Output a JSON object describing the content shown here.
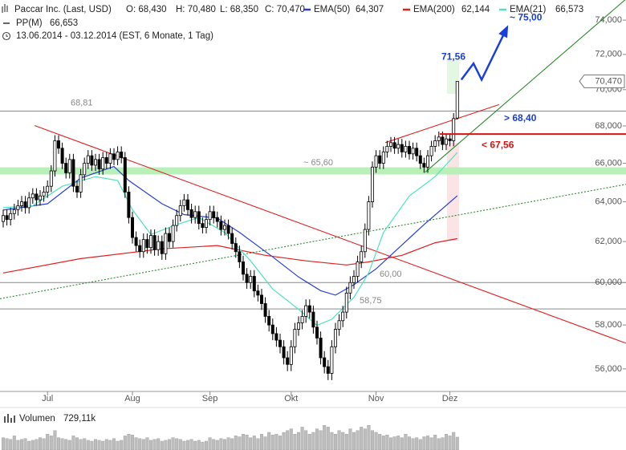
{
  "chart_data": {
    "type": "candlestick",
    "header": {
      "instrument": "Paccar Inc. (Last, USD)",
      "quote": [
        "O: 68,430",
        "H: 70,480",
        "L: 68,350",
        "C: 70,470"
      ],
      "pivot_name": "PP(M)",
      "pivot_value": "66,653",
      "range": "13.06.2014 - 03.12.2014 (EST, 6 Monate, 1 Tag)"
    },
    "log_scale": true,
    "grid": false,
    "xlim": [
      -0.87,
      168.7
    ],
    "ylim": [
      55,
      75.2
    ],
    "yticks": [
      {
        "value": 56,
        "label": "56,000"
      },
      {
        "value": 58,
        "label": "58,000"
      },
      {
        "value": 60,
        "label": "60,000"
      },
      {
        "value": 62,
        "label": "62,000"
      },
      {
        "value": 64,
        "label": "64,000"
      },
      {
        "value": 66,
        "label": "66,000"
      },
      {
        "value": 68,
        "label": "68,000"
      },
      {
        "value": 70,
        "label": "70,000"
      },
      {
        "value": 72,
        "label": "72,000"
      },
      {
        "value": 74,
        "label": "74,000"
      }
    ],
    "xticks": [
      {
        "value": 12,
        "label": "Jul"
      },
      {
        "value": 35,
        "label": "Aug"
      },
      {
        "value": 56,
        "label": "Sep"
      },
      {
        "value": 78,
        "label": "Okt"
      },
      {
        "value": 101,
        "label": "Nov"
      },
      {
        "value": 121,
        "label": "Dez"
      }
    ],
    "up_color": "#ffffff",
    "down_color": "#000000",
    "candles": [
      [
        63.0,
        63.6,
        62.7,
        63.3
      ],
      [
        63.3,
        63.6,
        62.8,
        63.1
      ],
      [
        63.1,
        63.7,
        62.8,
        63.4
      ],
      [
        63.4,
        63.9,
        63.1,
        63.6
      ],
      [
        63.6,
        64.1,
        63.3,
        63.8
      ],
      [
        63.8,
        64.3,
        63.5,
        64.0
      ],
      [
        64.0,
        64.3,
        63.4,
        63.7
      ],
      [
        63.7,
        64.5,
        63.4,
        64.2
      ],
      [
        64.2,
        64.7,
        63.9,
        64.4
      ],
      [
        64.4,
        64.7,
        63.8,
        64.1
      ],
      [
        64.1,
        64.6,
        63.8,
        64.3
      ],
      [
        64.3,
        64.8,
        64.0,
        64.5
      ],
      [
        64.5,
        65.1,
        64.2,
        64.8
      ],
      [
        64.8,
        65.9,
        64.5,
        65.6
      ],
      [
        65.6,
        67.5,
        65.3,
        67.2
      ],
      [
        67.2,
        67.5,
        66.5,
        66.8
      ],
      [
        66.8,
        67.1,
        65.7,
        66.0
      ],
      [
        66.0,
        66.3,
        65.2,
        65.5
      ],
      [
        65.5,
        66.5,
        65.2,
        66.2
      ],
      [
        66.2,
        66.5,
        64.5,
        64.8
      ],
      [
        64.8,
        65.1,
        64.2,
        64.5
      ],
      [
        64.5,
        65.7,
        64.2,
        65.4
      ],
      [
        65.4,
        66.3,
        65.1,
        66.0
      ],
      [
        66.0,
        66.7,
        65.7,
        66.4
      ],
      [
        66.4,
        66.7,
        65.6,
        65.9
      ],
      [
        65.9,
        66.5,
        65.6,
        66.2
      ],
      [
        66.2,
        66.5,
        65.4,
        65.7
      ],
      [
        65.7,
        66.6,
        65.4,
        66.3
      ],
      [
        66.3,
        66.6,
        65.7,
        66.0
      ],
      [
        66.0,
        66.8,
        65.7,
        66.5
      ],
      [
        66.5,
        66.8,
        65.9,
        66.2
      ],
      [
        66.2,
        66.9,
        65.9,
        66.6
      ],
      [
        66.6,
        66.9,
        66.0,
        66.3
      ],
      [
        66.3,
        66.6,
        64.2,
        64.5
      ],
      [
        64.5,
        64.8,
        62.9,
        63.2
      ],
      [
        63.2,
        63.5,
        61.9,
        62.2
      ],
      [
        62.2,
        62.5,
        61.5,
        61.8
      ],
      [
        61.8,
        62.1,
        61.2,
        61.5
      ],
      [
        61.5,
        62.4,
        61.2,
        62.1
      ],
      [
        62.1,
        62.4,
        61.4,
        61.7
      ],
      [
        61.7,
        62.6,
        61.4,
        62.3
      ],
      [
        62.3,
        62.6,
        61.3,
        61.6
      ],
      [
        61.6,
        62.3,
        61.3,
        62.0
      ],
      [
        62.0,
        62.3,
        61.1,
        61.4
      ],
      [
        61.4,
        62.7,
        61.1,
        62.4
      ],
      [
        62.4,
        62.7,
        61.7,
        62.0
      ],
      [
        62.0,
        63.1,
        61.7,
        62.8
      ],
      [
        62.8,
        63.6,
        62.5,
        63.3
      ],
      [
        63.3,
        64.1,
        63.0,
        63.8
      ],
      [
        63.8,
        64.4,
        63.5,
        64.1
      ],
      [
        64.1,
        64.4,
        63.3,
        63.6
      ],
      [
        63.6,
        63.9,
        62.9,
        63.2
      ],
      [
        63.2,
        63.8,
        62.9,
        63.5
      ],
      [
        63.5,
        63.8,
        62.6,
        62.9
      ],
      [
        62.9,
        63.2,
        62.4,
        62.7
      ],
      [
        62.7,
        63.4,
        62.4,
        63.1
      ],
      [
        63.1,
        63.8,
        62.8,
        63.5
      ],
      [
        63.5,
        63.8,
        62.9,
        63.2
      ],
      [
        63.2,
        63.5,
        62.7,
        63.0
      ],
      [
        63.0,
        63.3,
        62.3,
        62.6
      ],
      [
        62.6,
        63.1,
        62.3,
        62.8
      ],
      [
        62.8,
        63.1,
        62.1,
        62.4
      ],
      [
        62.4,
        62.7,
        61.6,
        61.9
      ],
      [
        61.9,
        62.2,
        61.2,
        61.5
      ],
      [
        61.5,
        61.8,
        60.7,
        61.0
      ],
      [
        61.0,
        61.3,
        60.1,
        60.4
      ],
      [
        60.4,
        60.7,
        59.7,
        60.0
      ],
      [
        60.0,
        60.6,
        59.7,
        60.3
      ],
      [
        60.3,
        60.6,
        59.3,
        59.6
      ],
      [
        59.6,
        59.9,
        59.1,
        59.4
      ],
      [
        59.4,
        59.7,
        58.7,
        59.0
      ],
      [
        59.0,
        59.3,
        58.1,
        58.4
      ],
      [
        58.4,
        58.7,
        57.7,
        58.0
      ],
      [
        58.0,
        58.3,
        57.3,
        57.6
      ],
      [
        57.6,
        57.9,
        57.0,
        57.3
      ],
      [
        57.3,
        57.6,
        56.7,
        57.0
      ],
      [
        57.0,
        57.3,
        56.2,
        56.5
      ],
      [
        56.5,
        56.8,
        55.9,
        56.2
      ],
      [
        56.2,
        57.3,
        55.9,
        57.0
      ],
      [
        57.0,
        58.1,
        56.7,
        57.8
      ],
      [
        57.8,
        58.4,
        57.5,
        58.1
      ],
      [
        58.1,
        58.7,
        57.8,
        58.4
      ],
      [
        58.4,
        59.2,
        58.1,
        58.9
      ],
      [
        58.9,
        59.2,
        58.3,
        58.6
      ],
      [
        58.6,
        58.9,
        57.6,
        57.9
      ],
      [
        57.9,
        58.2,
        57.1,
        57.4
      ],
      [
        57.4,
        57.7,
        56.2,
        56.5
      ],
      [
        56.5,
        56.8,
        55.8,
        56.1
      ],
      [
        56.1,
        56.4,
        55.5,
        55.8
      ],
      [
        55.8,
        57.3,
        55.5,
        57.0
      ],
      [
        57.0,
        58.1,
        56.7,
        57.8
      ],
      [
        57.8,
        58.5,
        57.5,
        58.2
      ],
      [
        58.2,
        58.9,
        57.9,
        58.6
      ],
      [
        58.6,
        59.8,
        58.3,
        59.5
      ],
      [
        59.5,
        60.3,
        59.2,
        60.0
      ],
      [
        60.0,
        60.6,
        59.7,
        60.3
      ],
      [
        60.3,
        61.3,
        60.0,
        61.0
      ],
      [
        61.0,
        61.8,
        60.7,
        61.5
      ],
      [
        61.5,
        62.9,
        61.2,
        62.6
      ],
      [
        62.6,
        64.3,
        62.3,
        64.0
      ],
      [
        64.0,
        66.1,
        63.7,
        65.8
      ],
      [
        65.8,
        66.7,
        65.5,
        66.4
      ],
      [
        66.4,
        66.7,
        65.7,
        66.0
      ],
      [
        66.0,
        66.9,
        65.7,
        66.6
      ],
      [
        66.6,
        67.2,
        66.3,
        66.9
      ],
      [
        66.9,
        67.4,
        66.6,
        67.1
      ],
      [
        67.1,
        67.4,
        66.5,
        66.8
      ],
      [
        66.8,
        67.3,
        66.5,
        67.0
      ],
      [
        67.0,
        67.3,
        66.3,
        66.6
      ],
      [
        66.6,
        67.2,
        66.3,
        66.9
      ],
      [
        66.9,
        67.2,
        66.2,
        66.5
      ],
      [
        66.5,
        67.1,
        66.2,
        66.8
      ],
      [
        66.8,
        67.1,
        66.1,
        66.4
      ],
      [
        66.4,
        66.7,
        65.7,
        66.0
      ],
      [
        66.0,
        66.3,
        65.5,
        65.8
      ],
      [
        65.8,
        66.7,
        65.5,
        66.4
      ],
      [
        66.4,
        67.2,
        66.1,
        66.9
      ],
      [
        66.9,
        67.5,
        66.6,
        67.2
      ],
      [
        67.2,
        67.7,
        66.9,
        67.4
      ],
      [
        67.4,
        67.7,
        66.7,
        67.0
      ],
      [
        67.0,
        67.6,
        66.7,
        67.3
      ],
      [
        67.3,
        67.6,
        66.9,
        67.2
      ],
      [
        67.2,
        68.7,
        66.9,
        68.4
      ],
      [
        68.43,
        70.48,
        68.35,
        70.47
      ]
    ],
    "last_price_label": "70,470",
    "series": [
      {
        "name": "EMA(50)",
        "color": "#2a3fd0",
        "last_label": "64,307",
        "x": [
          0,
          12,
          21,
          30,
          34,
          43,
          49,
          58,
          64,
          73,
          80,
          86,
          90,
          95,
          101,
          108,
          114,
          123
        ],
        "values": [
          63.58,
          63.9,
          65.23,
          65.83,
          65.1,
          63.9,
          63.35,
          63.17,
          62.45,
          61.24,
          60.27,
          59.61,
          59.4,
          59.9,
          60.66,
          61.83,
          62.85,
          64.307
        ]
      },
      {
        "name": "EMA(200)",
        "color": "#e02020",
        "last_label": "62,144",
        "x": [
          0,
          21,
          43,
          58,
          71,
          82,
          93,
          99,
          108,
          117,
          123
        ],
        "values": [
          60.46,
          61.16,
          61.64,
          61.8,
          61.32,
          61.05,
          60.85,
          61.0,
          61.32,
          61.94,
          62.144
        ]
      },
      {
        "name": "EMA(21)",
        "color": "#4fe3c0",
        "last_label": "66,573",
        "x": [
          0,
          8,
          16,
          25,
          31,
          35,
          40,
          47,
          53,
          60,
          67,
          73,
          80,
          85,
          89,
          95,
          99,
          103,
          110,
          117,
          123
        ],
        "values": [
          63.7,
          63.8,
          64.8,
          65.3,
          65.1,
          63.6,
          62.35,
          62.85,
          63.2,
          62.45,
          61.05,
          59.69,
          58.73,
          57.98,
          58.27,
          59.3,
          60.46,
          62.45,
          64.3,
          65.3,
          66.573
        ]
      }
    ],
    "levels": [
      {
        "value": 68.81,
        "label": "68,81"
      },
      {
        "value": 60.0,
        "label": "60,00"
      },
      {
        "value": 58.75,
        "label": "58,75"
      }
    ],
    "support_zone": {
      "value": 65.6,
      "label": "~ 65,60",
      "color": "#b8f0b8"
    },
    "trendlines": [
      {
        "color": "#e02020",
        "dashed": false,
        "x": [
          8.5,
          168.7
        ],
        "values": [
          68.02,
          57.16
        ]
      },
      {
        "color": "#e02020",
        "dashed": false,
        "x": [
          103.5,
          134.3
        ],
        "values": [
          67.1,
          69.17
        ]
      },
      {
        "color": "#2a8a2a",
        "dashed": false,
        "x": [
          114.3,
          168.7
        ],
        "values": [
          65.53,
          75.26
        ]
      },
      {
        "color": "#2a8a2a",
        "dashed": true,
        "x": [
          -0.87,
          168.7
        ],
        "values": [
          59.23,
          64.9
        ]
      }
    ],
    "projection": {
      "color": "#1a3fe0",
      "x": [
        124.1,
        127.4,
        129.6,
        136.5
      ],
      "values": [
        70.56,
        71.48,
        70.56,
        73.58
      ]
    },
    "annotations": [
      {
        "text": "71,56",
        "value": 71.56,
        "color": "#1a3fd0",
        "line": false
      },
      {
        "text": "~ 75,00",
        "value": 75.0,
        "color": "#1a3fd0",
        "line": false
      },
      {
        "text": "> 68,40",
        "value": 68.4,
        "color": "#1a3fd0",
        "line": false
      },
      {
        "text": "< 67,56",
        "value": 67.56,
        "color": "#e01010",
        "line": true
      }
    ],
    "volume": {
      "label": "Volumen",
      "last_label": "729,11k",
      "color": "#bdbdbd",
      "ylim": [
        0,
        1500
      ],
      "values": [
        700,
        650,
        600,
        800,
        550,
        600,
        650,
        500,
        550,
        600,
        700,
        650,
        900,
        800,
        1100,
        700,
        650,
        600,
        550,
        800,
        700,
        600,
        650,
        550,
        500,
        600,
        550,
        500,
        600,
        550,
        650,
        500,
        550,
        800,
        900,
        850,
        700,
        650,
        600,
        700,
        550,
        600,
        650,
        500,
        550,
        600,
        700,
        650,
        600,
        500,
        550,
        600,
        500,
        550,
        450,
        500,
        700,
        600,
        550,
        650,
        600,
        700,
        650,
        800,
        750,
        900,
        850,
        700,
        800,
        650,
        900,
        750,
        1000,
        850,
        900,
        800,
        1000,
        1100,
        1200,
        900,
        1000,
        1300,
        1100,
        900,
        1000,
        1200,
        1100,
        1400,
        1300,
        1000,
        900,
        1100,
        1000,
        900,
        1200,
        1000,
        1100,
        1300,
        1200,
        1400,
        1100,
        1000,
        900,
        800,
        850,
        700,
        750,
        800,
        700,
        900,
        750,
        650,
        700,
        600,
        750,
        800,
        700,
        850,
        650,
        700,
        900,
        800,
        1000,
        729.11
      ]
    }
  }
}
